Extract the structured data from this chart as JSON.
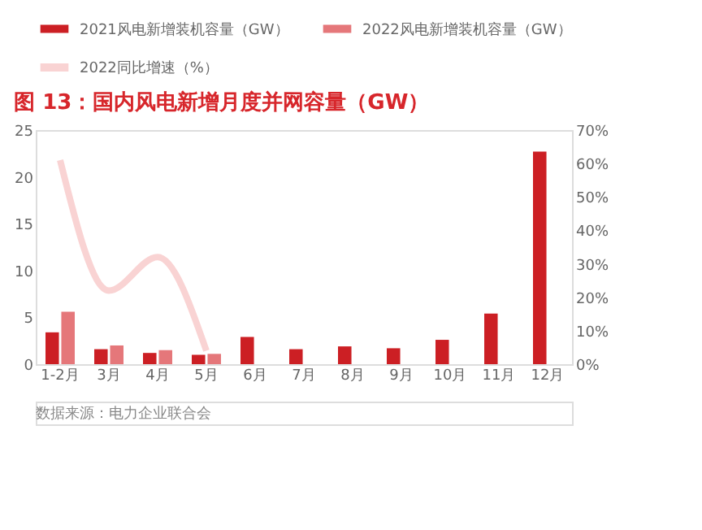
{
  "chart_data": {
    "type": "bar",
    "title": "图 13：国内风电新增月度并网容量（GW）",
    "categories": [
      "1-2月",
      "3月",
      "4月",
      "5月",
      "6月",
      "7月",
      "8月",
      "9月",
      "10月",
      "11月",
      "12月"
    ],
    "series": [
      {
        "name": "2021风电新增装机容量（GW）",
        "color": "#cc1f24",
        "values": [
          3.4,
          1.6,
          1.2,
          1.0,
          2.9,
          1.6,
          1.9,
          1.7,
          2.6,
          5.4,
          22.7
        ]
      },
      {
        "name": "2022风电新增装机容量（GW）",
        "color": "#e5777a",
        "values": [
          5.6,
          2.0,
          1.5,
          1.1,
          null,
          null,
          null,
          null,
          null,
          null,
          null
        ]
      },
      {
        "name": "2022同比增速（%）",
        "color": "#f9d3d3",
        "type": "line",
        "axis": "y2",
        "values": [
          61,
          22,
          32,
          4,
          null,
          null,
          null,
          null,
          null,
          null,
          null
        ]
      }
    ],
    "ylim": [
      0,
      25
    ],
    "yticks": [
      0,
      5,
      10,
      15,
      20,
      25
    ],
    "y2lim": [
      0,
      70
    ],
    "y2ticks": [
      {
        "value": 0,
        "label": "0%"
      },
      {
        "value": 10,
        "label": "10%"
      },
      {
        "value": 20,
        "label": "20%"
      },
      {
        "value": 30,
        "label": "30%"
      },
      {
        "value": 40,
        "label": "40%"
      },
      {
        "value": 50,
        "label": "50%"
      },
      {
        "value": 60,
        "label": "60%"
      },
      {
        "value": 70,
        "label": "70%"
      }
    ],
    "grid": false,
    "legend": "top left",
    "marker": "none",
    "line_style": "solid",
    "annotations": [
      "数据来源：电力企业联合会"
    ]
  }
}
